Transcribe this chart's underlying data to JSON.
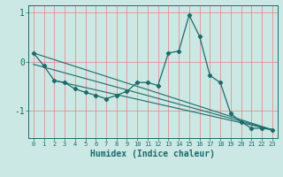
{
  "xlabel": "Humidex (Indice chaleur)",
  "xlim": [
    -0.5,
    23.5
  ],
  "ylim": [
    -1.55,
    1.15
  ],
  "bg_color": "#cce8e4",
  "line_color": "#1a6b6a",
  "grid_color": "#e88080",
  "x": [
    0,
    1,
    2,
    3,
    4,
    5,
    6,
    7,
    8,
    9,
    10,
    11,
    12,
    13,
    14,
    15,
    16,
    17,
    18,
    19,
    20,
    21,
    22,
    23
  ],
  "y_main": [
    0.18,
    -0.08,
    -0.38,
    -0.42,
    -0.55,
    -0.62,
    -0.68,
    -0.75,
    -0.68,
    -0.6,
    -0.42,
    -0.42,
    -0.48,
    0.18,
    0.22,
    0.95,
    0.52,
    -0.28,
    -0.42,
    -1.05,
    -1.22,
    -1.35,
    -1.35,
    -1.38
  ],
  "trend1_x": [
    0,
    23
  ],
  "trend1_y": [
    0.18,
    -1.38
  ],
  "trend2_x": [
    0,
    23
  ],
  "trend2_y": [
    -0.05,
    -1.38
  ],
  "trend3_x": [
    2,
    23
  ],
  "trend3_y": [
    -0.38,
    -1.38
  ],
  "yticks": [
    -1,
    0,
    1
  ],
  "xticks": [
    0,
    1,
    2,
    3,
    4,
    5,
    6,
    7,
    8,
    9,
    10,
    11,
    12,
    13,
    14,
    15,
    16,
    17,
    18,
    19,
    20,
    21,
    22,
    23
  ]
}
